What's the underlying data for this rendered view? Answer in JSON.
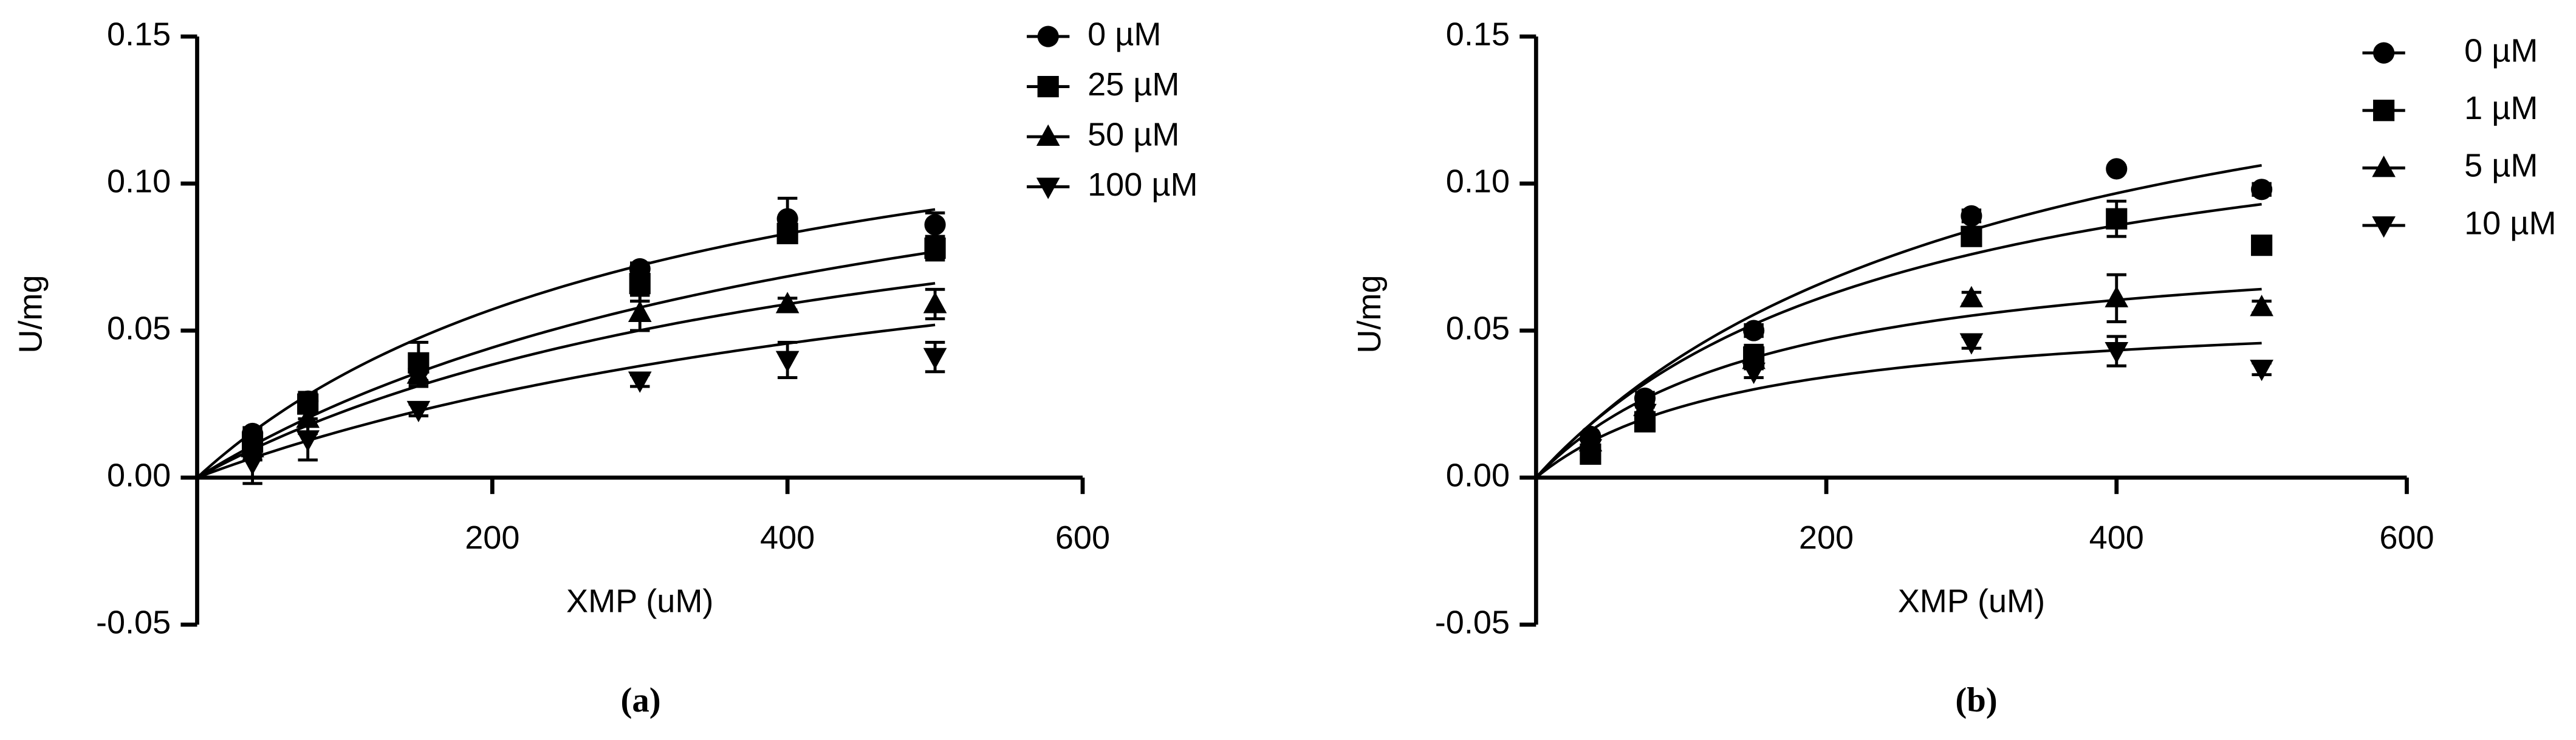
{
  "chart_data": [
    {
      "type": "scatter",
      "caption": "(a)",
      "x_label": "XMP (uM)",
      "y_label": "U/mg",
      "x": [
        37.5,
        75,
        150,
        300,
        400,
        500
      ],
      "xlim": [
        0,
        600
      ],
      "xticks": [
        200,
        400,
        600
      ],
      "ylim": [
        -0.05,
        0.15
      ],
      "yticks": [
        {
          "value": -0.05,
          "label": "-0.05"
        },
        {
          "value": 0,
          "label": "0.00"
        },
        {
          "value": 0.05,
          "label": "0.05"
        },
        {
          "value": 0.1,
          "label": "0.10"
        },
        {
          "value": 0.15,
          "label": "0.15"
        }
      ],
      "series": [
        {
          "name": "0 µM",
          "color": "#000000",
          "marker": "circle",
          "values": [
            0.015,
            0.026,
            0.037,
            0.071,
            0.088,
            0.086
          ],
          "errors": [
            0.002,
            0.003,
            0.004,
            0.002,
            0.007,
            0.004
          ],
          "fit": {
            "vmax": 0.151,
            "km": 328
          }
        },
        {
          "name": "25 µM",
          "color": "#000000",
          "marker": "square",
          "values": [
            0.012,
            0.025,
            0.039,
            0.066,
            0.083,
            0.078
          ],
          "errors": [
            0.002,
            0.003,
            0.007,
            0.006,
            0.003,
            0.004
          ],
          "fit": {
            "vmax": 0.151,
            "km": 483
          }
        },
        {
          "name": "50 µM",
          "color": "#000000",
          "marker": "triangle-up",
          "values": [
            0.01,
            0.02,
            0.035,
            0.056,
            0.059,
            0.059
          ],
          "errors": [
            0.004,
            0.005,
            0.004,
            0.006,
            0.002,
            0.005
          ],
          "fit": {
            "vmax": 0.127,
            "km": 461
          }
        },
        {
          "name": "100 µM",
          "color": "#000000",
          "marker": "triangle-down",
          "values": [
            0.005,
            0.013,
            0.023,
            0.033,
            0.04,
            0.041
          ],
          "errors": [
            0.007,
            0.007,
            0.002,
            0.002,
            0.006,
            0.005
          ],
          "fit": {
            "vmax": 0.116,
            "km": 617
          }
        }
      ]
    },
    {
      "type": "scatter",
      "caption": "(b)",
      "x_label": "XMP (uM)",
      "y_label": "U/mg",
      "x": [
        37.5,
        75,
        150,
        300,
        400,
        500
      ],
      "xlim": [
        0,
        600
      ],
      "xticks": [
        200,
        400,
        600
      ],
      "ylim": [
        -0.05,
        0.15
      ],
      "yticks": [
        {
          "value": -0.05,
          "label": "-0.05"
        },
        {
          "value": 0,
          "label": "0.00"
        },
        {
          "value": 0.05,
          "label": "0.05"
        },
        {
          "value": 0.1,
          "label": "0.10"
        },
        {
          "value": 0.15,
          "label": "0.15"
        }
      ],
      "series": [
        {
          "name": "0 µM",
          "color": "#000000",
          "marker": "circle",
          "values": [
            0.014,
            0.027,
            0.05,
            0.089,
            0.105,
            0.098
          ],
          "errors": [
            0.001,
            0.002,
            0.002,
            0.002,
            0.001,
            0.002
          ],
          "fit": {
            "vmax": 0.175,
            "km": 324
          }
        },
        {
          "name": "1 µM",
          "color": "#000000",
          "marker": "square",
          "values": [
            0.008,
            0.019,
            0.041,
            0.082,
            0.088,
            0.079
          ],
          "errors": [
            0.002,
            0.002,
            0.004,
            0.003,
            0.006,
            0.002
          ],
          "fit": {
            "vmax": 0.14,
            "km": 253
          }
        },
        {
          "name": "5 µM",
          "color": "#000000",
          "marker": "triangle-up",
          "values": [
            0.012,
            0.024,
            0.04,
            0.061,
            0.061,
            0.058
          ],
          "errors": [
            0.001,
            0.002,
            0.002,
            0.002,
            0.008,
            0.002
          ],
          "fit": {
            "vmax": 0.085,
            "km": 163
          }
        },
        {
          "name": "10 µM",
          "color": "#000000",
          "marker": "triangle-down",
          "values": [
            0.01,
            0.022,
            0.036,
            0.046,
            0.043,
            0.037
          ],
          "errors": [
            0.001,
            0.002,
            0.002,
            0.002,
            0.005,
            0.002
          ],
          "fit": {
            "vmax": 0.059,
            "km": 145
          }
        }
      ]
    }
  ]
}
